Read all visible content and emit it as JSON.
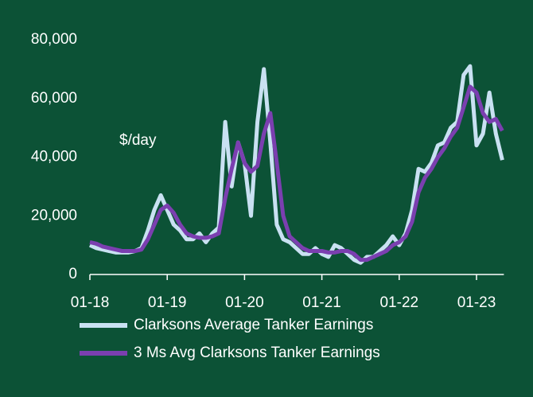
{
  "chart_data": {
    "type": "line",
    "annotation": "$/day",
    "categories": [
      "01-18",
      null,
      null,
      null,
      null,
      null,
      null,
      null,
      null,
      null,
      null,
      null,
      "01-19",
      null,
      null,
      null,
      null,
      null,
      null,
      null,
      null,
      null,
      null,
      null,
      "01-20",
      null,
      null,
      null,
      null,
      null,
      null,
      null,
      null,
      null,
      null,
      null,
      "01-21",
      null,
      null,
      null,
      null,
      null,
      null,
      null,
      null,
      null,
      null,
      null,
      "01-22",
      null,
      null,
      null,
      null,
      null,
      null,
      null,
      null,
      null,
      null,
      null,
      "01-23",
      null,
      null,
      null,
      null
    ],
    "series": [
      {
        "name": "Clarksons Average Tanker Earnings",
        "color": "#c9e1f2",
        "values": [
          10000,
          9000,
          8500,
          8000,
          7500,
          7500,
          7500,
          8000,
          9000,
          15000,
          22000,
          27000,
          22000,
          17000,
          15000,
          12000,
          12000,
          14000,
          11000,
          14000,
          16000,
          52000,
          30000,
          45000,
          38000,
          20000,
          52000,
          70000,
          45000,
          17000,
          12000,
          11000,
          9000,
          7000,
          7000,
          9000,
          7000,
          6000,
          10000,
          9000,
          7000,
          5000,
          4000,
          6000,
          6000,
          8000,
          10000,
          13000,
          10000,
          14000,
          22000,
          36000,
          35000,
          38000,
          44000,
          45000,
          50000,
          52000,
          68000,
          71000,
          44000,
          48000,
          62000,
          48000,
          39000
        ]
      },
      {
        "name": "3 Ms Avg Clarksons Tanker Earnings",
        "color": "#7b3fb0",
        "values": [
          11000,
          10500,
          9500,
          9000,
          8500,
          8000,
          8000,
          8000,
          8500,
          12000,
          17000,
          22000,
          23500,
          21000,
          17000,
          14000,
          13000,
          12500,
          12500,
          13000,
          14000,
          26000,
          36000,
          45000,
          38000,
          35000,
          37000,
          48000,
          55000,
          38000,
          20000,
          13000,
          11000,
          9000,
          8000,
          8000,
          8000,
          7500,
          7500,
          8000,
          8000,
          7000,
          5000,
          5000,
          6000,
          7000,
          8000,
          10000,
          11000,
          13000,
          18000,
          28000,
          33000,
          36000,
          40000,
          43000,
          47000,
          50000,
          57000,
          64000,
          62000,
          55000,
          52000,
          53000,
          49000
        ]
      }
    ],
    "ylim": [
      0,
      80000
    ],
    "yticks": [
      0,
      {
        "value": 20000,
        "label": "20,000"
      },
      {
        "value": 40000,
        "label": "40,000"
      },
      {
        "value": 60000,
        "label": "60,000"
      },
      {
        "value": 80000,
        "label": "80,000"
      }
    ],
    "legend": "bottom"
  }
}
